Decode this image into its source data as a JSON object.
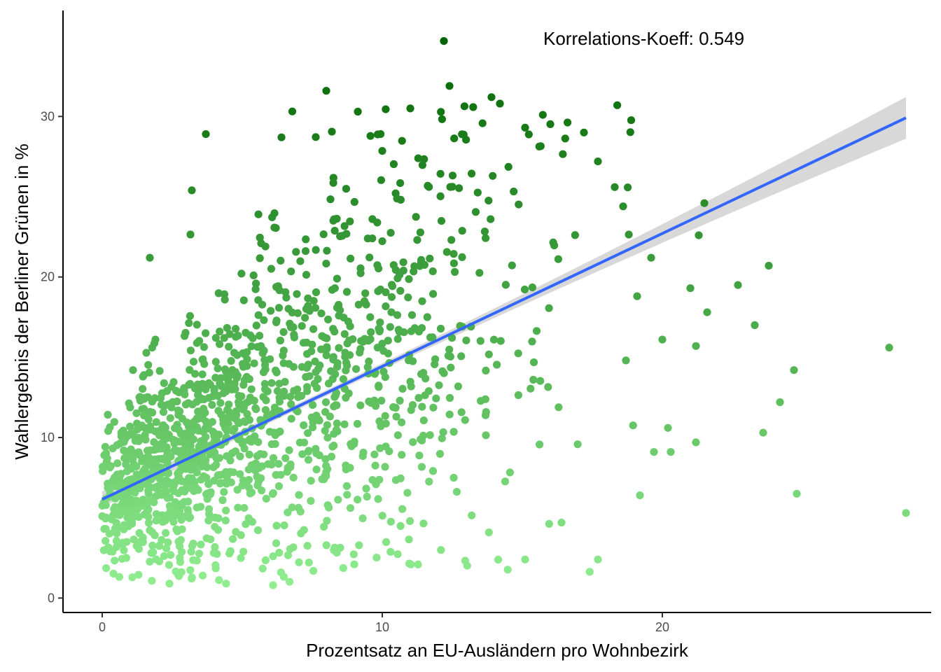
{
  "chart_data": {
    "type": "scatter",
    "title": "",
    "xlabel": "Prozentsatz an EU-Ausländern pro Wohnbezirk",
    "ylabel": "Wahlergebnis der Berliner Grünen in %",
    "xlim": [
      -1.4,
      29.6
    ],
    "ylim": [
      -0.9,
      36.6
    ],
    "x_ticks": [
      0,
      10,
      20
    ],
    "y_ticks": [
      0,
      10,
      20,
      30
    ],
    "grid": false,
    "legend": "none",
    "annotation": "Korrelations-Koeff: 0.549",
    "regression": {
      "method": "linear",
      "x_range": [
        0,
        28.7
      ],
      "intercept": 6.15,
      "slope": 0.828,
      "ci_half_width_at_ends": [
        0.5,
        1.3
      ],
      "ci_half_width_at_mean": 0.18,
      "x_mean": 7.0
    },
    "color_scale": {
      "variable": "y",
      "low": "#90ee90",
      "high": "#006400",
      "domain": [
        0.8,
        34.7
      ]
    },
    "colors": {
      "line": "#3366ff",
      "ci_band": "#bebebe",
      "axis": "#000000",
      "tick_text": "#4d4d4d"
    },
    "points": {
      "n_approx": 1500,
      "x": [
        0.0,
        0.4,
        2.4,
        6.1,
        1.7,
        12.2,
        12.4,
        8.0,
        11.0,
        13.9,
        14.2,
        15.1,
        17.2,
        17.7,
        18.3,
        18.6,
        21.5,
        21.3,
        23.8,
        22.7,
        23.3,
        28.1,
        24.7,
        24.2,
        23.6,
        28.7,
        24.8,
        19.2,
        17.7,
        16.4,
        15.1,
        9.0,
        6.1,
        3.7,
        3.2,
        6.4,
        1.9,
        1.1,
        19.7,
        20.0,
        20.2,
        20.3,
        21.0,
        21.2,
        21.6,
        19.6,
        19.1,
        18.7,
        21.2
      ],
      "y": [
        5.1,
        7.3,
        0.9,
        0.8,
        21.2,
        34.7,
        31.9,
        31.6,
        30.5,
        31.2,
        30.8,
        29.3,
        29.0,
        27.2,
        25.6,
        24.4,
        24.6,
        22.6,
        20.7,
        19.5,
        17.0,
        15.6,
        14.2,
        12.2,
        10.3,
        5.3,
        6.5,
        6.4,
        2.4,
        4.7,
        2.4,
        2.1,
        2.6,
        28.9,
        25.4,
        28.7,
        16.1,
        14.2,
        9.1,
        16.1,
        10.6,
        9.1,
        19.3,
        15.7,
        17.8,
        21.2,
        18.8,
        14.8,
        9.7
      ],
      "cloud": {
        "x_center": 7.0,
        "x_spread": 4.5,
        "note_free": true
      }
    }
  }
}
